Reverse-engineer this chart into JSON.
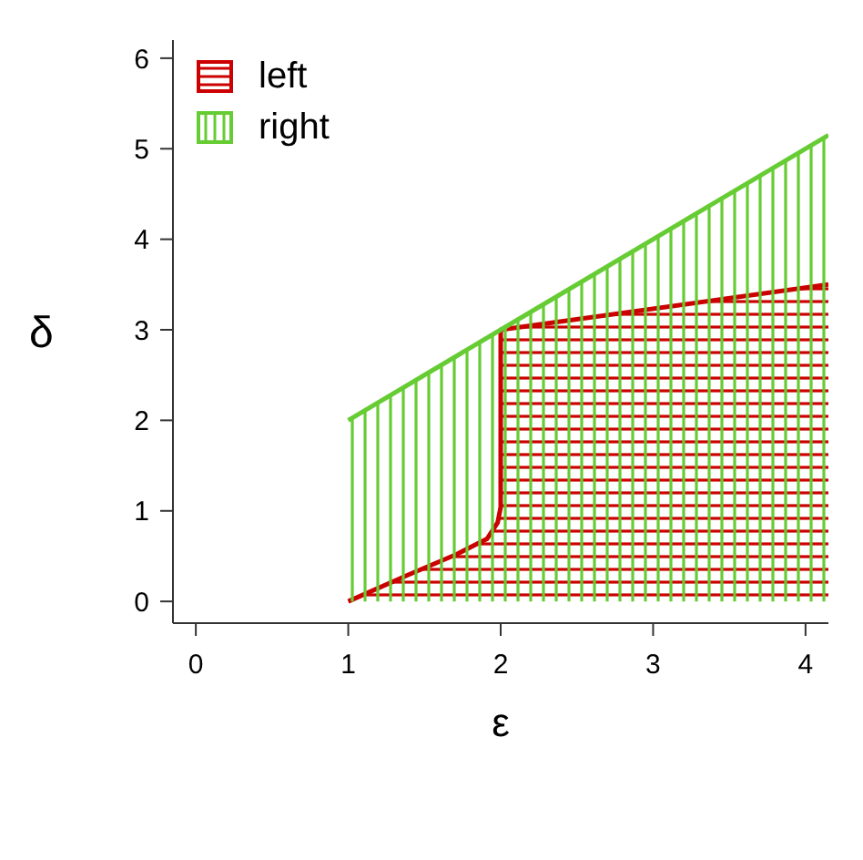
{
  "chart_data": {
    "type": "area",
    "xlabel": "ε",
    "ylabel": "δ",
    "xlim": [
      -0.15,
      4.15
    ],
    "xticks": [
      0,
      1,
      2,
      3,
      4
    ],
    "ylim": [
      -0.24,
      6.2
    ],
    "yticks": [
      0,
      1,
      2,
      3,
      4,
      5,
      6
    ],
    "grid": false,
    "legend": "top left",
    "series": [
      {
        "name": "left",
        "color": "#cc0000",
        "x": [
          1,
          1.39,
          1.71,
          1.91,
          1.98,
          2,
          2,
          4.15
        ],
        "values": [
          0,
          0.29,
          0.52,
          0.69,
          0.87,
          1.04,
          3,
          3.5
        ]
      },
      {
        "name": "right",
        "color": "#66cc33",
        "x": [
          1,
          2,
          4.15
        ],
        "values": [
          2,
          3,
          5.15
        ]
      }
    ]
  }
}
